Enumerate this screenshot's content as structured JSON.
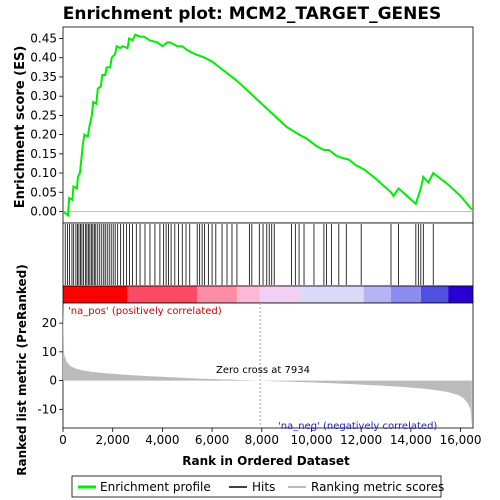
{
  "chart_data": {
    "type": "line",
    "title": "Enrichment plot: MCM2_TARGET_GENES",
    "xlabel": "Rank in Ordered Dataset",
    "es_ylabel": "Enrichment score (ES)",
    "metric_ylabel": "Ranked list metric (PreRanked)",
    "xlim": [
      0,
      16500
    ],
    "es_ylim": [
      -0.03,
      0.48
    ],
    "metric_ylim": [
      -16.5,
      27
    ],
    "x_ticks": [
      0,
      2000,
      4000,
      6000,
      8000,
      10000,
      12000,
      14000,
      16000
    ],
    "x_tick_labels": [
      "0",
      "2,000",
      "4,000",
      "6,000",
      "8,000",
      "10,000",
      "12,000",
      "14,000",
      "16,000"
    ],
    "es_ticks": [
      0.0,
      0.05,
      0.1,
      0.15,
      0.2,
      0.25,
      0.3,
      0.35,
      0.4,
      0.45
    ],
    "es_tick_labels": [
      "0.00",
      "0.05",
      "0.10",
      "0.15",
      "0.20",
      "0.25",
      "0.30",
      "0.35",
      "0.40",
      "0.45"
    ],
    "metric_ticks": [
      -10,
      0,
      10,
      20
    ],
    "metric_tick_labels": [
      "-10",
      "0",
      "10",
      "20"
    ],
    "annotations": {
      "na_pos": "'na_pos' (positively correlated)",
      "na_neg": "'na_neg' (negatively correlated)",
      "zero_cross": "Zero cross at 7934"
    },
    "zero_cross": 7934,
    "legend": [
      {
        "label": "Enrichment profile",
        "color": "#00ee00"
      },
      {
        "label": "Hits",
        "color": "#000000"
      },
      {
        "label": "Ranking metric scores",
        "color": "#bbbbbb"
      }
    ],
    "series": [
      {
        "name": "Enrichment profile",
        "color": "#00ee00",
        "x": [
          0,
          200,
          250,
          380,
          420,
          560,
          600,
          680,
          720,
          800,
          860,
          1000,
          1060,
          1160,
          1220,
          1340,
          1400,
          1520,
          1580,
          1700,
          1760,
          1900,
          1960,
          2100,
          2160,
          2300,
          2400,
          2600,
          2660,
          2800,
          2900,
          3100,
          3250,
          3500,
          3800,
          4000,
          4200,
          4300,
          4600,
          4800,
          5000,
          5300,
          5500,
          5700,
          6000,
          6300,
          6600,
          7000,
          7500,
          8000,
          8500,
          9000,
          9500,
          9800,
          10200,
          10500,
          10700,
          11000,
          11200,
          11500,
          11800,
          12100,
          12500,
          13200,
          13300,
          13500,
          14200,
          14300,
          14400,
          14500,
          14700,
          14900,
          15200,
          15500,
          16000,
          16450
        ],
        "y": [
          0.0,
          -0.01,
          0.035,
          0.03,
          0.065,
          0.06,
          0.09,
          0.1,
          0.125,
          0.175,
          0.2,
          0.195,
          0.22,
          0.25,
          0.285,
          0.28,
          0.32,
          0.325,
          0.355,
          0.355,
          0.375,
          0.375,
          0.4,
          0.41,
          0.43,
          0.425,
          0.43,
          0.425,
          0.45,
          0.445,
          0.46,
          0.455,
          0.455,
          0.445,
          0.44,
          0.43,
          0.44,
          0.44,
          0.43,
          0.43,
          0.42,
          0.41,
          0.405,
          0.4,
          0.39,
          0.375,
          0.36,
          0.34,
          0.31,
          0.28,
          0.25,
          0.22,
          0.2,
          0.19,
          0.17,
          0.16,
          0.16,
          0.145,
          0.14,
          0.135,
          0.12,
          0.11,
          0.09,
          0.05,
          0.04,
          0.06,
          0.02,
          0.04,
          0.06,
          0.09,
          0.075,
          0.1,
          0.085,
          0.07,
          0.04,
          0.005
        ]
      }
    ],
    "hits": [
      90,
      180,
      260,
      360,
      430,
      520,
      580,
      640,
      700,
      760,
      820,
      900,
      960,
      1020,
      1080,
      1140,
      1200,
      1260,
      1320,
      1400,
      1480,
      1560,
      1640,
      1700,
      1780,
      1860,
      1940,
      2020,
      2100,
      2200,
      2320,
      2440,
      2560,
      2680,
      2800,
      2950,
      3100,
      3300,
      3500,
      3700,
      3900,
      4050,
      4150,
      4250,
      4350,
      4500,
      4650,
      4800,
      4950,
      5100,
      5400,
      5500,
      5600,
      5700,
      5850,
      6000,
      6150,
      6400,
      6600,
      6800,
      7000,
      7500,
      7600,
      7900,
      8050,
      8200,
      8300,
      8400,
      8500,
      9200,
      9350,
      9500,
      9700,
      10100,
      10500,
      10600,
      10800,
      11100,
      11400,
      12000,
      13200,
      13500,
      14200,
      14300,
      14400,
      14500,
      14900
    ],
    "metric_curve": {
      "x": [
        0,
        50,
        150,
        300,
        500,
        800,
        1200,
        1800,
        2500,
        3500,
        4500,
        5500,
        6500,
        7500,
        7934,
        8500,
        9500,
        10500,
        11500,
        12500,
        13500,
        14500,
        15000,
        15500,
        15900,
        16100,
        16300,
        16400,
        16450
      ],
      "y": [
        26,
        9,
        6.5,
        5.0,
        4.2,
        3.5,
        3.0,
        2.5,
        2.0,
        1.5,
        1.1,
        0.7,
        0.4,
        0.15,
        0.0,
        -0.2,
        -0.5,
        -0.8,
        -1.2,
        -1.6,
        -2.1,
        -2.8,
        -3.3,
        -4.0,
        -5.0,
        -6.0,
        -8.0,
        -10.0,
        -16.0
      ]
    },
    "color_bar": {
      "colors": [
        "#ff0000",
        "#ff4a64",
        "#ff8ca5",
        "#ffb7d6",
        "#f3d0f3",
        "#dadaf8",
        "#b4b4f7",
        "#8c8cf0",
        "#5050e0",
        "#2a00d2"
      ],
      "stops": [
        0,
        2600,
        5400,
        7000,
        7934,
        9500,
        12100,
        13200,
        14400,
        15500,
        16500
      ]
    }
  }
}
